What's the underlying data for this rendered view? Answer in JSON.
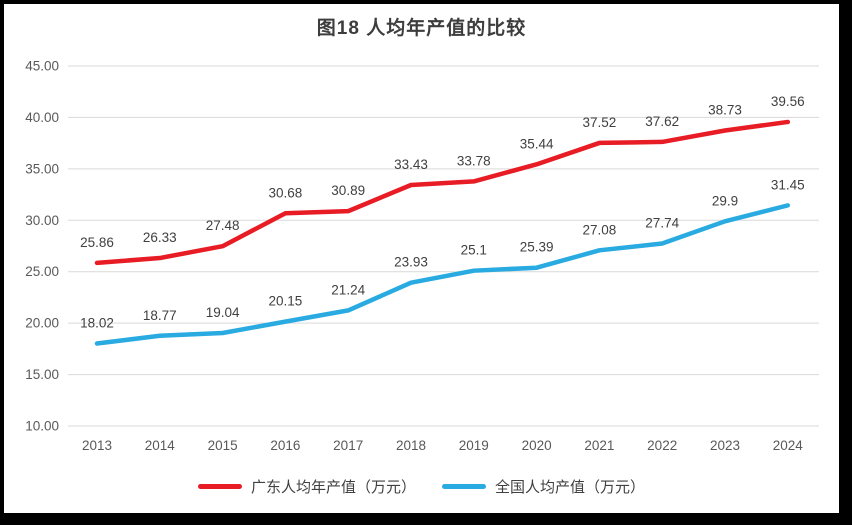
{
  "chart_data": {
    "type": "line",
    "title": "图18 人均年产值的比较",
    "categories": [
      "2013",
      "2014",
      "2015",
      "2016",
      "2017",
      "2018",
      "2019",
      "2020",
      "2021",
      "2022",
      "2023",
      "2024"
    ],
    "series": [
      {
        "name": "广东人均年产值（万元）",
        "color": "#e81c24",
        "values": [
          25.86,
          26.33,
          27.48,
          30.68,
          30.89,
          33.43,
          33.78,
          35.44,
          37.52,
          37.62,
          38.73,
          39.56
        ]
      },
      {
        "name": "全国人均产值（万元）",
        "color": "#29abe2",
        "values": [
          18.02,
          18.77,
          19.04,
          20.15,
          21.24,
          23.93,
          25.1,
          25.39,
          27.08,
          27.74,
          29.9,
          31.45
        ]
      }
    ],
    "ylim": [
      10,
      45
    ],
    "ytick_step": 5,
    "ytick_labels": [
      "10.00",
      "15.00",
      "20.00",
      "25.00",
      "30.00",
      "35.00",
      "40.00",
      "45.00"
    ],
    "grid": "horizontal",
    "data_labels": true,
    "legend_position": "bottom",
    "colors": {
      "gridline": "#d9d9d9",
      "axis_tick_text": "#595959",
      "data_label_text": "#404040",
      "title_text": "#3d3d3d",
      "background": "#ffffff",
      "frame_border": "#000000"
    }
  }
}
